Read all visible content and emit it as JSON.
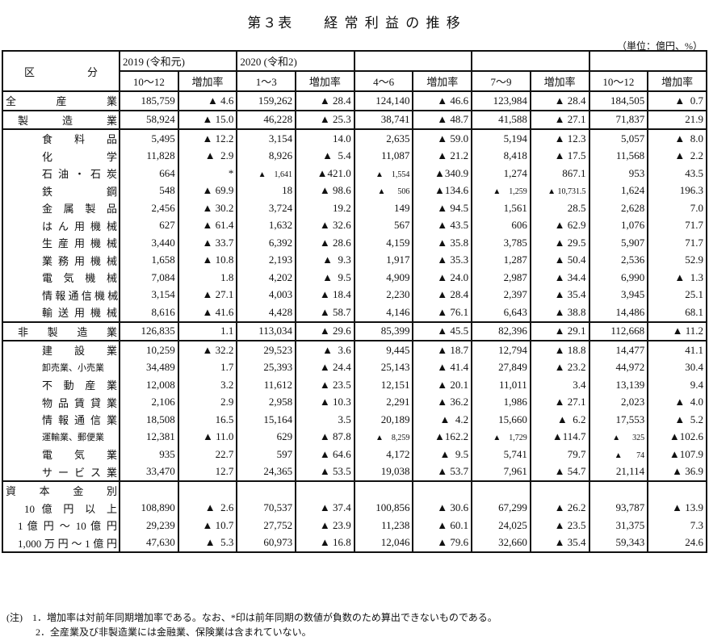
{
  "title": "第３表　　経 常 利 益 の 推 移",
  "unit": "（単位：億円、%）",
  "header": {
    "category": "区　　　　　分",
    "years": [
      "2019 (令和元)",
      "2020 (令和2)",
      "",
      "",
      ""
    ],
    "periods": [
      "10～12",
      "1～3",
      "4～6",
      "7～9",
      "10～12"
    ],
    "rate": "増加率"
  },
  "rows": [
    {
      "label": "全 産 業",
      "indent": 0,
      "group": true,
      "values": [
        "185,759",
        "▲ 4.6",
        "159,262",
        "▲ 28.4",
        "124,140",
        "▲ 46.6",
        "123,984",
        "▲ 28.4",
        "184,505",
        "▲  0.7"
      ]
    },
    {
      "label": "製 造 業",
      "indent": 1,
      "group": true,
      "values": [
        "58,924",
        "▲ 15.0",
        "46,228",
        "▲ 25.3",
        "38,741",
        "▲ 48.7",
        "41,588",
        "▲ 27.1",
        "71,837",
        "21.9"
      ]
    },
    {
      "label": "食 料 品",
      "indent": 2,
      "group": true,
      "values": [
        "5,495",
        "▲ 12.2",
        "3,154",
        "14.0",
        "2,635",
        "▲ 59.0",
        "5,194",
        "▲ 12.3",
        "5,057",
        "▲  8.0"
      ]
    },
    {
      "label": "化 学",
      "indent": 2,
      "values": [
        "11,828",
        "▲  2.9",
        "8,926",
        "▲  5.4",
        "11,087",
        "▲ 21.2",
        "8,418",
        "▲ 17.5",
        "11,568",
        "▲  2.2"
      ]
    },
    {
      "label": "石 油 ・ 石 炭",
      "indent": 2,
      "values": [
        "664",
        "*",
        "▲    1,641",
        "▲421.0",
        "▲    1,554",
        "▲340.9",
        "1,274",
        "867.1",
        "953",
        "43.5"
      ]
    },
    {
      "label": "鉄 鋼",
      "indent": 2,
      "values": [
        "548",
        "▲ 69.9",
        "18",
        "▲ 98.6",
        "▲      506",
        "▲134.6",
        "▲    1,259",
        "▲ 10,731.5",
        "1,624",
        "196.3"
      ]
    },
    {
      "label": "金 属 製 品",
      "indent": 2,
      "values": [
        "2,456",
        "▲ 30.2",
        "3,724",
        "19.2",
        "149",
        "▲ 94.5",
        "1,561",
        "28.5",
        "2,628",
        "7.0"
      ]
    },
    {
      "label": "は ん 用 機 械",
      "indent": 2,
      "values": [
        "627",
        "▲ 61.4",
        "1,632",
        "▲ 32.6",
        "567",
        "▲ 43.5",
        "606",
        "▲ 62.9",
        "1,076",
        "71.7"
      ]
    },
    {
      "label": "生 産 用 機 械",
      "indent": 2,
      "values": [
        "3,440",
        "▲ 33.7",
        "6,392",
        "▲ 28.6",
        "4,159",
        "▲ 35.8",
        "3,785",
        "▲ 29.5",
        "5,907",
        "71.7"
      ]
    },
    {
      "label": "業 務 用 機 械",
      "indent": 2,
      "values": [
        "1,658",
        "▲ 10.8",
        "2,193",
        "▲  9.3",
        "1,917",
        "▲ 35.3",
        "1,287",
        "▲ 50.4",
        "2,536",
        "52.9"
      ]
    },
    {
      "label": "電 気 機 械",
      "indent": 2,
      "values": [
        "7,084",
        "1.8",
        "4,202",
        "▲  9.5",
        "4,909",
        "▲ 24.0",
        "2,987",
        "▲ 34.4",
        "6,990",
        "▲  1.3"
      ]
    },
    {
      "label": "情 報 通 信 機 械",
      "indent": 2,
      "values": [
        "3,154",
        "▲ 27.1",
        "4,003",
        "▲ 18.4",
        "2,230",
        "▲ 28.4",
        "2,397",
        "▲ 35.4",
        "3,945",
        "25.1"
      ]
    },
    {
      "label": "輸 送 用 機 械",
      "indent": 2,
      "values": [
        "8,616",
        "▲ 41.6",
        "4,428",
        "▲ 58.7",
        "4,146",
        "▲ 76.1",
        "6,643",
        "▲ 38.8",
        "14,486",
        "68.1"
      ]
    },
    {
      "label": "非 製 造 業",
      "indent": 1,
      "group": true,
      "values": [
        "126,835",
        "1.1",
        "113,034",
        "▲ 29.6",
        "85,399",
        "▲ 45.5",
        "82,396",
        "▲ 29.1",
        "112,668",
        "▲ 11.2"
      ]
    },
    {
      "label": "建 設 業",
      "indent": 2,
      "group": true,
      "values": [
        "10,259",
        "▲ 32.2",
        "29,523",
        "▲  3.6",
        "9,445",
        "▲ 18.7",
        "12,794",
        "▲ 18.8",
        "14,477",
        "41.1"
      ]
    },
    {
      "label": "卸売業、小売業",
      "indent": 2,
      "small": true,
      "values": [
        "34,489",
        "1.7",
        "25,393",
        "▲ 24.4",
        "25,143",
        "▲ 41.4",
        "27,849",
        "▲ 23.2",
        "44,972",
        "30.4"
      ]
    },
    {
      "label": "不 動 産 業",
      "indent": 2,
      "values": [
        "12,008",
        "3.2",
        "11,612",
        "▲ 23.5",
        "12,151",
        "▲ 20.1",
        "11,011",
        "3.4",
        "13,139",
        "9.4"
      ]
    },
    {
      "label": "物 品 賃 貸 業",
      "indent": 2,
      "values": [
        "2,106",
        "2.9",
        "2,958",
        "▲ 10.3",
        "2,291",
        "▲ 36.2",
        "1,986",
        "▲ 27.1",
        "2,023",
        "▲  4.0"
      ]
    },
    {
      "label": "情 報 通 信 業",
      "indent": 2,
      "values": [
        "18,508",
        "16.5",
        "15,164",
        "3.5",
        "20,189",
        "▲  4.2",
        "15,660",
        "▲  6.2",
        "17,553",
        "▲  5.2"
      ]
    },
    {
      "label": "運輸業、郵便業",
      "indent": 2,
      "small": true,
      "values": [
        "12,381",
        "▲ 11.0",
        "629",
        "▲ 87.8",
        "▲    8,259",
        "▲162.2",
        "▲    1,729",
        "▲114.7",
        "▲      325",
        "▲102.6"
      ]
    },
    {
      "label": "電 気 業",
      "indent": 2,
      "values": [
        "935",
        "22.7",
        "597",
        "▲ 64.6",
        "4,172",
        "▲  9.5",
        "5,741",
        "79.7",
        "▲       74",
        "▲107.9"
      ]
    },
    {
      "label": "サ ー ビ ス 業",
      "indent": 2,
      "values": [
        "33,470",
        "12.7",
        "24,365",
        "▲ 53.5",
        "19,038",
        "▲ 53.7",
        "7,961",
        "▲ 54.7",
        "21,114",
        "▲ 36.9"
      ]
    },
    {
      "label": "資 本 金 別",
      "indent": 0,
      "group": true,
      "values": [
        "",
        "",
        "",
        "",
        "",
        "",
        "",
        "",
        "",
        ""
      ]
    },
    {
      "label": "10 億 円 以 上",
      "indent": 3,
      "values": [
        "108,890",
        "▲  2.6",
        "70,537",
        "▲ 37.4",
        "100,856",
        "▲ 30.6",
        "67,299",
        "▲ 26.2",
        "93,787",
        "▲ 13.9"
      ]
    },
    {
      "label": "1 億 円 ～ 10 億 円",
      "indent": 1,
      "values": [
        "29,239",
        "▲ 10.7",
        "27,752",
        "▲ 23.9",
        "11,238",
        "▲ 60.1",
        "24,025",
        "▲ 23.5",
        "31,375",
        "7.3"
      ]
    },
    {
      "label": "1,000万円～1億円",
      "indent": 1,
      "values": [
        "47,630",
        "▲  5.3",
        "60,973",
        "▲ 16.8",
        "12,046",
        "▲ 79.6",
        "32,660",
        "▲ 35.4",
        "59,343",
        "24.6"
      ]
    }
  ],
  "notes": [
    "(注)　1．増加率は対前年同期増加率である。なお、*印は前年同期の数値が負数のため算出できないものである。",
    "　　　2．全産業及び非製造業には金融業、保険業は含まれていない。"
  ]
}
